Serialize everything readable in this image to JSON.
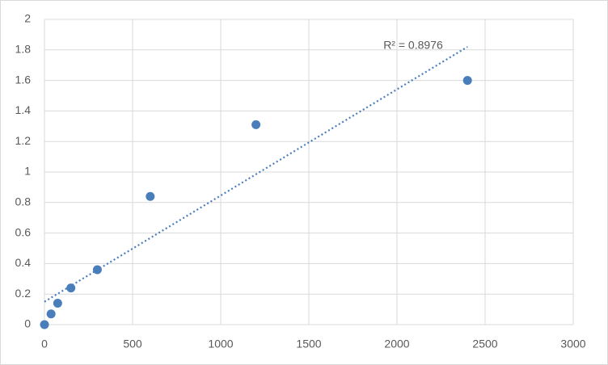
{
  "chart_data": {
    "type": "scatter",
    "x": [
      0,
      37.5,
      75,
      150,
      300,
      600,
      1200,
      2400
    ],
    "values": [
      0,
      0.07,
      0.14,
      0.24,
      0.36,
      0.84,
      1.31,
      1.6
    ],
    "color": "#4a7ebb",
    "trendline": {
      "x": [
        0,
        2400
      ],
      "values": [
        0.15,
        1.82
      ],
      "color": "#4a7ebb",
      "style": "dotted"
    },
    "annotation": "R² = 0.8976",
    "xlim": [
      0,
      3000
    ],
    "xticks": [
      0,
      500,
      1000,
      1500,
      2000,
      2500,
      3000
    ],
    "ylim": [
      0,
      2
    ],
    "yticks": [
      0,
      0.2,
      0.4,
      0.6,
      0.8,
      1,
      1.2,
      1.4,
      1.6,
      1.8,
      2
    ],
    "grid": true
  }
}
